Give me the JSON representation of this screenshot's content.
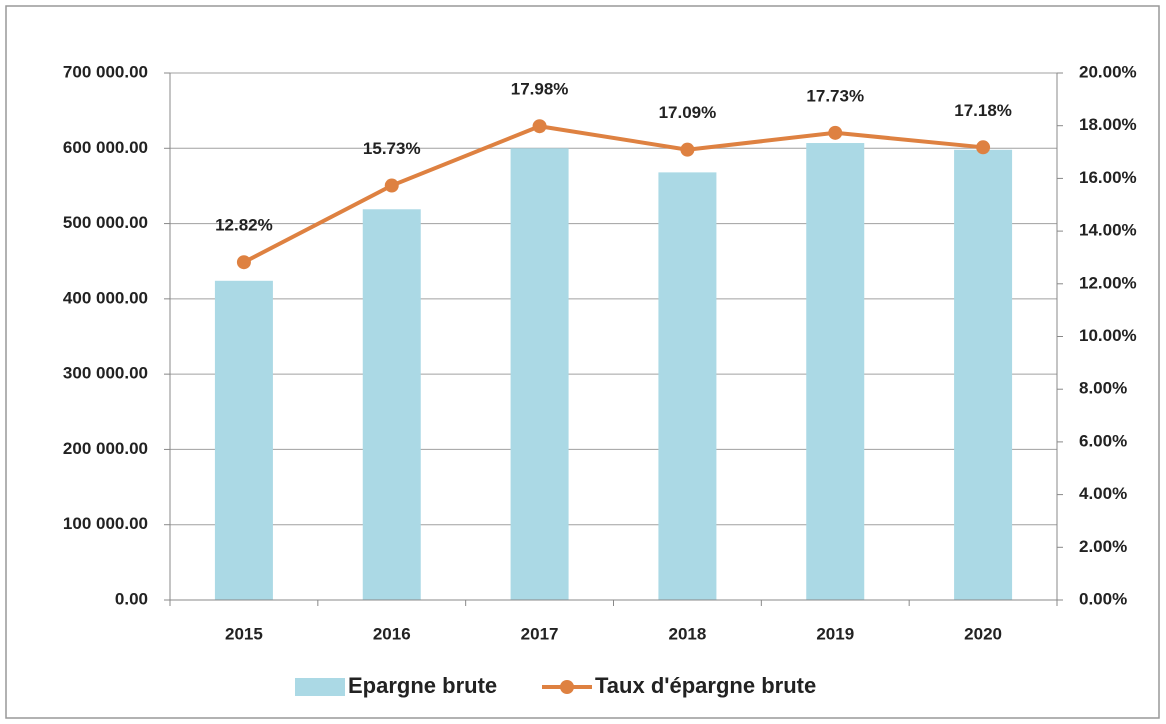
{
  "chart_data": {
    "type": "bar-line",
    "categories": [
      "2015",
      "2016",
      "2017",
      "2018",
      "2019",
      "2020"
    ],
    "series": [
      {
        "name": "Epargne brute",
        "type": "bar",
        "color": "#abd9e5",
        "values": [
          424000,
          519000,
          600000,
          568000,
          607000,
          598000
        ]
      },
      {
        "name": "Taux d'épargne brute",
        "type": "line",
        "axis": "y2",
        "color": "#de8141",
        "values": [
          12.82,
          15.73,
          17.98,
          17.09,
          17.73,
          17.18
        ],
        "value_labels": [
          "12.82%",
          "15.73%",
          "17.98%",
          "17.09%",
          "17.73%",
          "17.18%"
        ]
      }
    ],
    "ylim": [
      0,
      700000
    ],
    "yticks": [
      {
        "value": 0,
        "label": "0.00"
      },
      {
        "value": 100000,
        "label": "100 000.00"
      },
      {
        "value": 200000,
        "label": "200 000.00"
      },
      {
        "value": 300000,
        "label": "300 000.00"
      },
      {
        "value": 400000,
        "label": "400 000.00"
      },
      {
        "value": 500000,
        "label": "500 000.00"
      },
      {
        "value": 600000,
        "label": "600 000.00"
      },
      {
        "value": 700000,
        "label": "700 000.00"
      }
    ],
    "y2lim": [
      0,
      20
    ],
    "y2ticks": [
      {
        "value": 0,
        "label": "0.00%"
      },
      {
        "value": 2,
        "label": "2.00%"
      },
      {
        "value": 4,
        "label": "4.00%"
      },
      {
        "value": 6,
        "label": "6.00%"
      },
      {
        "value": 8,
        "label": "8.00%"
      },
      {
        "value": 10,
        "label": "10.00%"
      },
      {
        "value": 12,
        "label": "12.00%"
      },
      {
        "value": 14,
        "label": "14.00%"
      },
      {
        "value": 16,
        "label": "16.00%"
      },
      {
        "value": 18,
        "label": "18.00%"
      },
      {
        "value": 20,
        "label": "20.00%"
      }
    ],
    "grid": true,
    "legend": "bottom"
  }
}
